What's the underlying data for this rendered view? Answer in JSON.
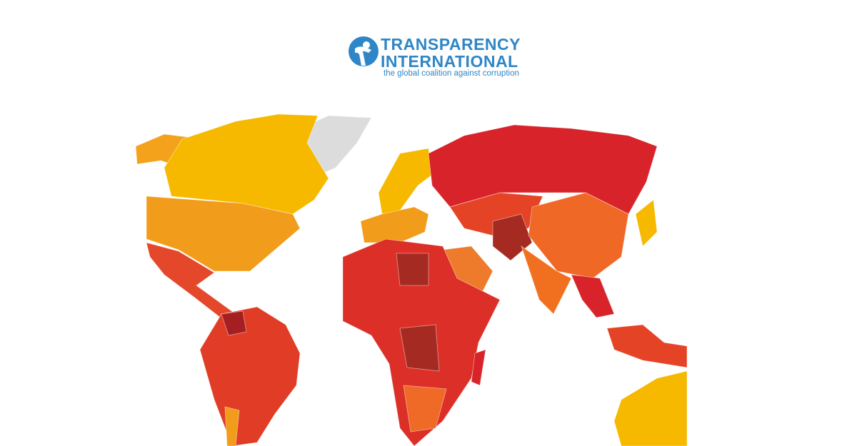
{
  "logo": {
    "name_line1": "TRANSPARENCY",
    "name_line2": "INTERNATIONAL",
    "tagline": "the global coalition against corruption"
  }
}
